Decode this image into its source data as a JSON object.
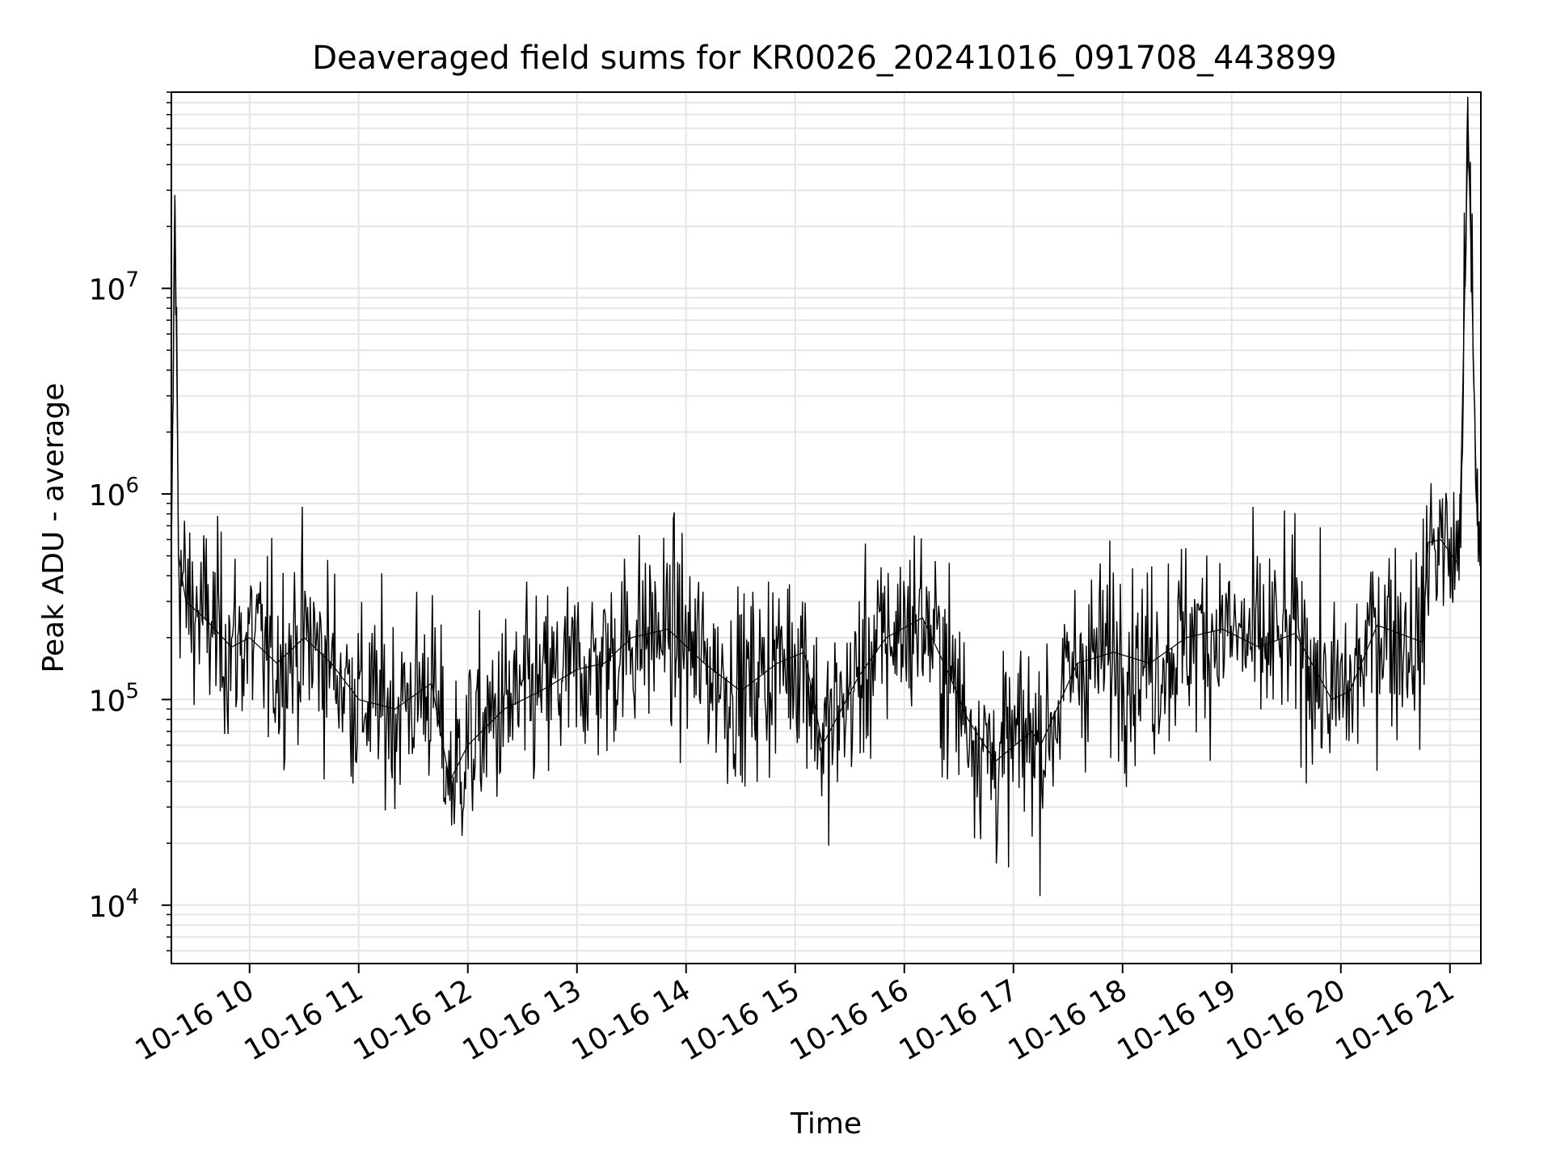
{
  "chart_data": {
    "type": "line",
    "title": "Deaveraged field sums for KR0026_20241016_091708_443899",
    "xlabel": "Time",
    "ylabel": "Peak ADU - average",
    "x_axis": {
      "kind": "time",
      "range": [
        "2024-10-16 09:17",
        "2024-10-16 21:17"
      ],
      "tick_labels": [
        "10-16 10",
        "10-16 11",
        "10-16 12",
        "10-16 13",
        "10-16 14",
        "10-16 15",
        "10-16 16",
        "10-16 17",
        "10-16 18",
        "10-16 19",
        "10-16 20",
        "10-16 21"
      ],
      "tick_label_rotation_deg": 30
    },
    "y_axis": {
      "scale": "log",
      "ylim": [
        5200,
        90000000
      ],
      "major_ticks": [
        10000,
        100000,
        1000000,
        10000000
      ],
      "tick_labels": [
        {
          "base": "10",
          "exp": "4"
        },
        {
          "base": "10",
          "exp": "5"
        },
        {
          "base": "10",
          "exp": "6"
        },
        {
          "base": "10",
          "exp": "7"
        }
      ]
    },
    "grid": true,
    "legend": "none",
    "series_color": "#000000",
    "grid_color": "#e5e5e5",
    "series": [
      {
        "x": [
          "2024-10-16 09:17",
          "2024-10-16 09:19",
          "2024-10-16 09:21",
          "2024-10-16 09:25",
          "2024-10-16 09:35",
          "2024-10-16 09:50",
          "2024-10-16 10:00",
          "2024-10-16 10:15",
          "2024-10-16 10:30",
          "2024-10-16 10:45",
          "2024-10-16 11:00",
          "2024-10-16 11:20",
          "2024-10-16 11:40",
          "2024-10-16 11:50",
          "2024-10-16 12:00",
          "2024-10-16 12:20",
          "2024-10-16 12:40",
          "2024-10-16 13:00",
          "2024-10-16 13:15",
          "2024-10-16 13:30",
          "2024-10-16 13:50",
          "2024-10-16 14:10",
          "2024-10-16 14:30",
          "2024-10-16 14:50",
          "2024-10-16 15:05",
          "2024-10-16 15:15",
          "2024-10-16 15:35",
          "2024-10-16 15:50",
          "2024-10-16 16:10",
          "2024-10-16 16:25",
          "2024-10-16 16:35",
          "2024-10-16 16:50",
          "2024-10-16 17:10",
          "2024-10-16 17:15",
          "2024-10-16 17:35",
          "2024-10-16 17:55",
          "2024-10-16 18:15",
          "2024-10-16 18:35",
          "2024-10-16 18:55",
          "2024-10-16 19:15",
          "2024-10-16 19:35",
          "2024-10-16 19:55",
          "2024-10-16 20:05",
          "2024-10-16 20:20",
          "2024-10-16 20:45",
          "2024-10-16 20:48",
          "2024-10-16 20:55",
          "2024-10-16 21:05",
          "2024-10-16 21:10",
          "2024-10-16 21:15"
        ],
        "y": [
          450000,
          27000000,
          500000,
          300000,
          250000,
          180000,
          200000,
          150000,
          200000,
          150000,
          100000,
          90000,
          120000,
          40000,
          60000,
          90000,
          110000,
          140000,
          150000,
          200000,
          220000,
          150000,
          110000,
          150000,
          170000,
          60000,
          130000,
          200000,
          250000,
          130000,
          80000,
          50000,
          70000,
          60000,
          150000,
          170000,
          150000,
          200000,
          220000,
          180000,
          210000,
          100000,
          110000,
          230000,
          190000,
          580000,
          600000,
          450000,
          60000000,
          700000
        ]
      }
    ]
  }
}
